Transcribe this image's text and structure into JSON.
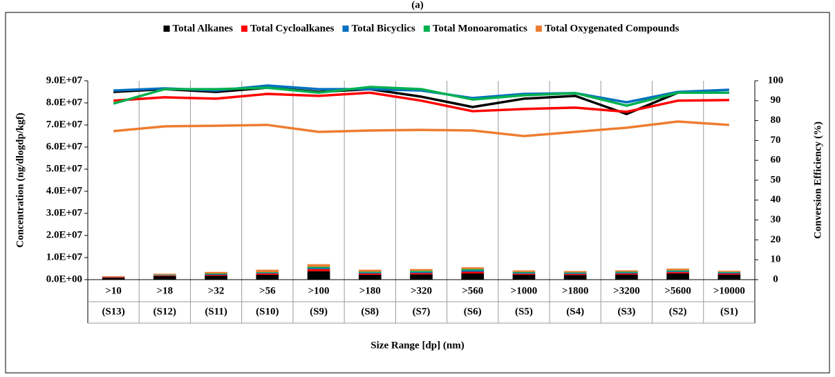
{
  "chart_data": {
    "type": "bar_line",
    "title": "(a)",
    "x_label": "Size Range [dp] (nm)",
    "y_label": "Concentration (ng/dlogdp/kgf)",
    "y2_label": "Conversion Efficiency (%)",
    "categories": [
      ">10",
      ">18",
      ">32",
      ">56",
      ">100",
      ">180",
      ">320",
      ">560",
      ">1000",
      ">1800",
      ">3200",
      ">5600",
      ">10000"
    ],
    "sub_categories": [
      "(S13)",
      "(S12)",
      "(S11)",
      "(S10)",
      "(S9)",
      "(S8)",
      "(S7)",
      "(S6)",
      "(S5)",
      "(S4)",
      "(S3)",
      "(S2)",
      "(S1)"
    ],
    "series": [
      {
        "name": "Total Alkanes",
        "color": "#000000",
        "values": [
          800000,
          1600000,
          1800000,
          2200000,
          3800000,
          2200000,
          2400000,
          2800000,
          2200000,
          2100000,
          2300000,
          2800000,
          2300000
        ],
        "efficiency": [
          94.4,
          95.8,
          94.4,
          96.5,
          94.4,
          95.8,
          92,
          86.8,
          91,
          92.4,
          83.3,
          94,
          94
        ]
      },
      {
        "name": "Total Cycloalkanes",
        "color": "#ff0000",
        "values": [
          300000,
          300000,
          400000,
          600000,
          1000000,
          600000,
          600000,
          800000,
          500000,
          500000,
          500000,
          600000,
          500000
        ],
        "efficiency": [
          90,
          91.7,
          91,
          93.4,
          92.4,
          94,
          90,
          84.7,
          85.8,
          86.5,
          84.4,
          90,
          90.3
        ]
      },
      {
        "name": "Total Bicyclics",
        "color": "#0070c0",
        "values": [
          100000,
          200000,
          300000,
          300000,
          500000,
          400000,
          500000,
          600000,
          400000,
          400000,
          400000,
          400000,
          400000
        ],
        "efficiency": [
          95.1,
          96.2,
          95.1,
          97.6,
          95.8,
          95.8,
          95.1,
          91.3,
          93.4,
          93.8,
          89.2,
          94.4,
          95.5
        ]
      },
      {
        "name": "Total Monoaromatics",
        "color": "#00b050",
        "values": [
          100000,
          200000,
          300000,
          300000,
          500000,
          400000,
          500000,
          600000,
          400000,
          300000,
          400000,
          400000,
          300000
        ],
        "efficiency": [
          88.5,
          95.8,
          95.8,
          96.5,
          94,
          96.9,
          95.8,
          90.6,
          92.7,
          93.8,
          87.5,
          94,
          94
        ]
      },
      {
        "name": "Total Oxygenated Compounds",
        "color": "#ed7d31",
        "values": [
          300000,
          400000,
          700000,
          1100000,
          1200000,
          900000,
          800000,
          800000,
          700000,
          600000,
          600000,
          800000,
          500000
        ],
        "efficiency": [
          74.7,
          77.1,
          77.4,
          77.8,
          74.3,
          75,
          75.3,
          75,
          72.2,
          74.3,
          76.4,
          79.5,
          77.8
        ]
      }
    ],
    "ylim": [
      0,
      90000000
    ],
    "yticks": [
      {
        "value": 0,
        "label": "0.0E+00"
      },
      {
        "value": 10000000,
        "label": "1.0E+07"
      },
      {
        "value": 20000000,
        "label": "2.0E+07"
      },
      {
        "value": 30000000,
        "label": "3.0E+07"
      },
      {
        "value": 40000000,
        "label": "4.0E+07"
      },
      {
        "value": 50000000,
        "label": "5.0E+07"
      },
      {
        "value": 60000000,
        "label": "6.0E+07"
      },
      {
        "value": 70000000,
        "label": "7.0E+07"
      },
      {
        "value": 80000000,
        "label": "8.0E+07"
      },
      {
        "value": 90000000,
        "label": "9.0E+07"
      }
    ],
    "y2lim": [
      0,
      100
    ],
    "y2ticks": [
      0,
      10,
      20,
      30,
      40,
      50,
      60,
      70,
      80,
      90,
      100
    ],
    "legend": "top"
  }
}
